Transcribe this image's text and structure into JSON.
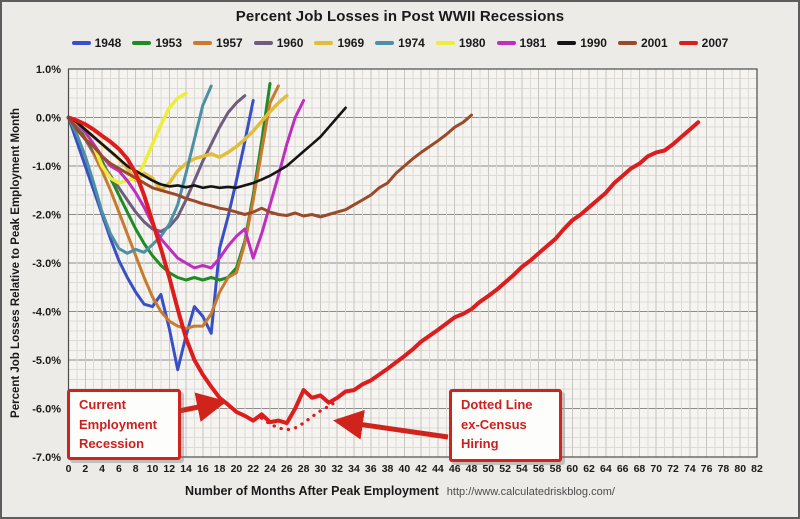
{
  "title": "Percent Job Losses in Post WWII Recessions",
  "source_url": "http://www.calculatedriskblog.com/",
  "x_axis": {
    "label": "Number of Months After Peak Employment",
    "min": 0,
    "max": 82,
    "tick_step": 2,
    "minor_step": 1
  },
  "y_axis": {
    "label": "Percent Job Losses Relative to Peak Employment Month",
    "min": -7,
    "max": 1,
    "tick_step": 1,
    "minor_step": 0.2,
    "tick_suffix": "%"
  },
  "annotations": [
    {
      "id": "current-recession",
      "lines": [
        "Current",
        "Employment",
        "Recession"
      ]
    },
    {
      "id": "ex-census",
      "lines": [
        "Dotted Line",
        "ex-Census",
        "Hiring"
      ]
    }
  ],
  "colors": {
    "annotation_red": "#cf231c",
    "grid_minor": "#dedbd6",
    "grid_minor_dark": "#c9c5bf",
    "grid_major": "#8c8c8c",
    "plot_border": "#4d4d4d",
    "plot_bg": "#f5f4f1"
  },
  "chart_data": {
    "type": "line",
    "title": "Percent Job Losses in Post WWII Recessions",
    "xlabel": "Number of Months After Peak Employment",
    "ylabel": "Percent Job Losses Relative to Peak Employment Month",
    "xlim": [
      0,
      82
    ],
    "ylim": [
      -7,
      1
    ],
    "grid": true,
    "legend_position": "top",
    "units": "percent",
    "series": [
      {
        "name": "1948",
        "color": "#3a4fc4",
        "line_width": 3,
        "start_month": 0,
        "values": [
          0,
          -0.5,
          -1.0,
          -1.5,
          -2.0,
          -2.5,
          -2.95,
          -3.3,
          -3.6,
          -3.85,
          -3.9,
          -3.65,
          -4.35,
          -5.2,
          -4.5,
          -3.9,
          -4.1,
          -4.45,
          -2.7,
          -2.05,
          -1.3,
          -0.5,
          0.35
        ]
      },
      {
        "name": "1953",
        "color": "#1f8b24",
        "line_width": 3,
        "start_month": 0,
        "values": [
          0,
          -0.15,
          -0.35,
          -0.6,
          -0.9,
          -1.25,
          -1.6,
          -1.95,
          -2.3,
          -2.6,
          -2.85,
          -3.05,
          -3.2,
          -3.3,
          -3.35,
          -3.3,
          -3.35,
          -3.3,
          -3.35,
          -3.3,
          -3.1,
          -2.55,
          -1.6,
          -0.5,
          0.7
        ]
      },
      {
        "name": "1957",
        "color": "#c87a2e",
        "line_width": 3,
        "start_month": 0,
        "values": [
          0,
          -0.2,
          -0.45,
          -0.75,
          -1.1,
          -1.5,
          -1.95,
          -2.4,
          -2.85,
          -3.3,
          -3.7,
          -4.0,
          -4.2,
          -4.3,
          -4.35,
          -4.3,
          -4.3,
          -4.05,
          -3.6,
          -3.3,
          -3.2,
          -2.6,
          -1.7,
          -0.7,
          0.3,
          0.65
        ]
      },
      {
        "name": "1960",
        "color": "#6f5d80",
        "line_width": 3,
        "start_month": 0,
        "values": [
          0,
          -0.2,
          -0.45,
          -0.7,
          -0.95,
          -1.2,
          -1.45,
          -1.7,
          -1.95,
          -2.15,
          -2.3,
          -2.35,
          -2.25,
          -2.05,
          -1.7,
          -1.3,
          -0.9,
          -0.55,
          -0.2,
          0.1,
          0.3,
          0.45
        ]
      },
      {
        "name": "1969",
        "color": "#e2bd3a",
        "line_width": 3.5,
        "start_month": 0,
        "values": [
          0,
          -0.1,
          -0.25,
          -0.4,
          -0.55,
          -0.7,
          -0.85,
          -1.05,
          -1.3,
          -1.15,
          -1.25,
          -1.5,
          -1.35,
          -1.1,
          -0.95,
          -0.85,
          -0.8,
          -0.75,
          -0.82,
          -0.72,
          -0.6,
          -0.45,
          -0.28,
          -0.08,
          0.12,
          0.3,
          0.45
        ]
      },
      {
        "name": "1974",
        "color": "#4b90a5",
        "line_width": 3,
        "start_month": 0,
        "values": [
          0,
          -0.35,
          -0.8,
          -1.35,
          -1.95,
          -2.4,
          -2.7,
          -2.8,
          -2.72,
          -2.78,
          -2.62,
          -2.45,
          -2.2,
          -1.8,
          -1.15,
          -0.45,
          0.25,
          0.65
        ]
      },
      {
        "name": "1980",
        "color": "#eded3a",
        "line_width": 3.5,
        "start_month": 0,
        "values": [
          0,
          -0.1,
          -0.3,
          -0.6,
          -1.0,
          -1.25,
          -1.35,
          -1.3,
          -1.25,
          -0.95,
          -0.55,
          -0.15,
          0.2,
          0.4,
          0.5
        ]
      },
      {
        "name": "1981",
        "color": "#bf2fbf",
        "line_width": 3,
        "start_month": 0,
        "values": [
          0,
          -0.1,
          -0.3,
          -0.55,
          -0.8,
          -1.0,
          -1.1,
          -1.3,
          -1.55,
          -1.85,
          -2.2,
          -2.5,
          -2.7,
          -2.9,
          -3.0,
          -3.1,
          -3.05,
          -3.1,
          -2.9,
          -2.65,
          -2.45,
          -2.3,
          -2.9,
          -2.4,
          -1.8,
          -1.2,
          -0.55,
          0.0,
          0.35
        ]
      },
      {
        "name": "1990",
        "color": "#141414",
        "line_width": 2.6,
        "start_month": 0,
        "values": [
          0,
          -0.1,
          -0.25,
          -0.4,
          -0.55,
          -0.7,
          -0.85,
          -1.0,
          -1.1,
          -1.2,
          -1.3,
          -1.38,
          -1.42,
          -1.4,
          -1.44,
          -1.4,
          -1.45,
          -1.42,
          -1.45,
          -1.43,
          -1.45,
          -1.4,
          -1.35,
          -1.28,
          -1.2,
          -1.1,
          -1.0,
          -0.85,
          -0.7,
          -0.55,
          -0.4,
          -0.2,
          0.0,
          0.2
        ]
      },
      {
        "name": "2001",
        "color": "#9a4a28",
        "line_width": 3,
        "start_month": 0,
        "values": [
          0,
          -0.25,
          -0.45,
          -0.6,
          -0.8,
          -0.95,
          -1.05,
          -1.15,
          -1.25,
          -1.35,
          -1.45,
          -1.5,
          -1.55,
          -1.6,
          -1.67,
          -1.72,
          -1.78,
          -1.82,
          -1.87,
          -1.9,
          -1.95,
          -2.0,
          -1.95,
          -1.87,
          -1.95,
          -2.0,
          -2.02,
          -1.97,
          -2.03,
          -2.0,
          -2.05,
          -2.0,
          -1.95,
          -1.9,
          -1.8,
          -1.7,
          -1.6,
          -1.45,
          -1.35,
          -1.15,
          -1.0,
          -0.85,
          -0.72,
          -0.6,
          -0.48,
          -0.35,
          -0.2,
          -0.1,
          0.05
        ]
      },
      {
        "name": "2007",
        "color": "#dd1d1d",
        "line_width": 4,
        "start_month": 0,
        "values": [
          0,
          -0.06,
          -0.14,
          -0.25,
          -0.38,
          -0.5,
          -0.65,
          -0.85,
          -1.15,
          -1.6,
          -2.15,
          -2.7,
          -3.3,
          -3.95,
          -4.55,
          -5.0,
          -5.3,
          -5.55,
          -5.78,
          -5.92,
          -6.07,
          -6.15,
          -6.25,
          -6.12,
          -6.28,
          -6.25,
          -6.3,
          -6.0,
          -5.62,
          -5.78,
          -5.73,
          -5.88,
          -5.78,
          -5.65,
          -5.62,
          -5.5,
          -5.42,
          -5.3,
          -5.18,
          -5.05,
          -4.92,
          -4.78,
          -4.62,
          -4.5,
          -4.38,
          -4.25,
          -4.12,
          -4.05,
          -3.95,
          -3.8,
          -3.68,
          -3.55,
          -3.4,
          -3.25,
          -3.08,
          -2.95,
          -2.8,
          -2.65,
          -2.5,
          -2.3,
          -2.12,
          -2.0,
          -1.85,
          -1.7,
          -1.55,
          -1.35,
          -1.2,
          -1.05,
          -0.95,
          -0.8,
          -0.72,
          -0.68,
          -0.55,
          -0.4,
          -0.25,
          -0.1
        ]
      }
    ],
    "ex_census_series": {
      "name": "2007 ex-Census Hiring",
      "color": "#dd1d1d",
      "style": "dotted",
      "line_width": 3.2,
      "start_month": 23,
      "values": [
        -6.2,
        -6.32,
        -6.4,
        -6.44,
        -6.4,
        -6.3,
        -6.17,
        -6.05,
        -5.95,
        -5.85
      ]
    }
  }
}
